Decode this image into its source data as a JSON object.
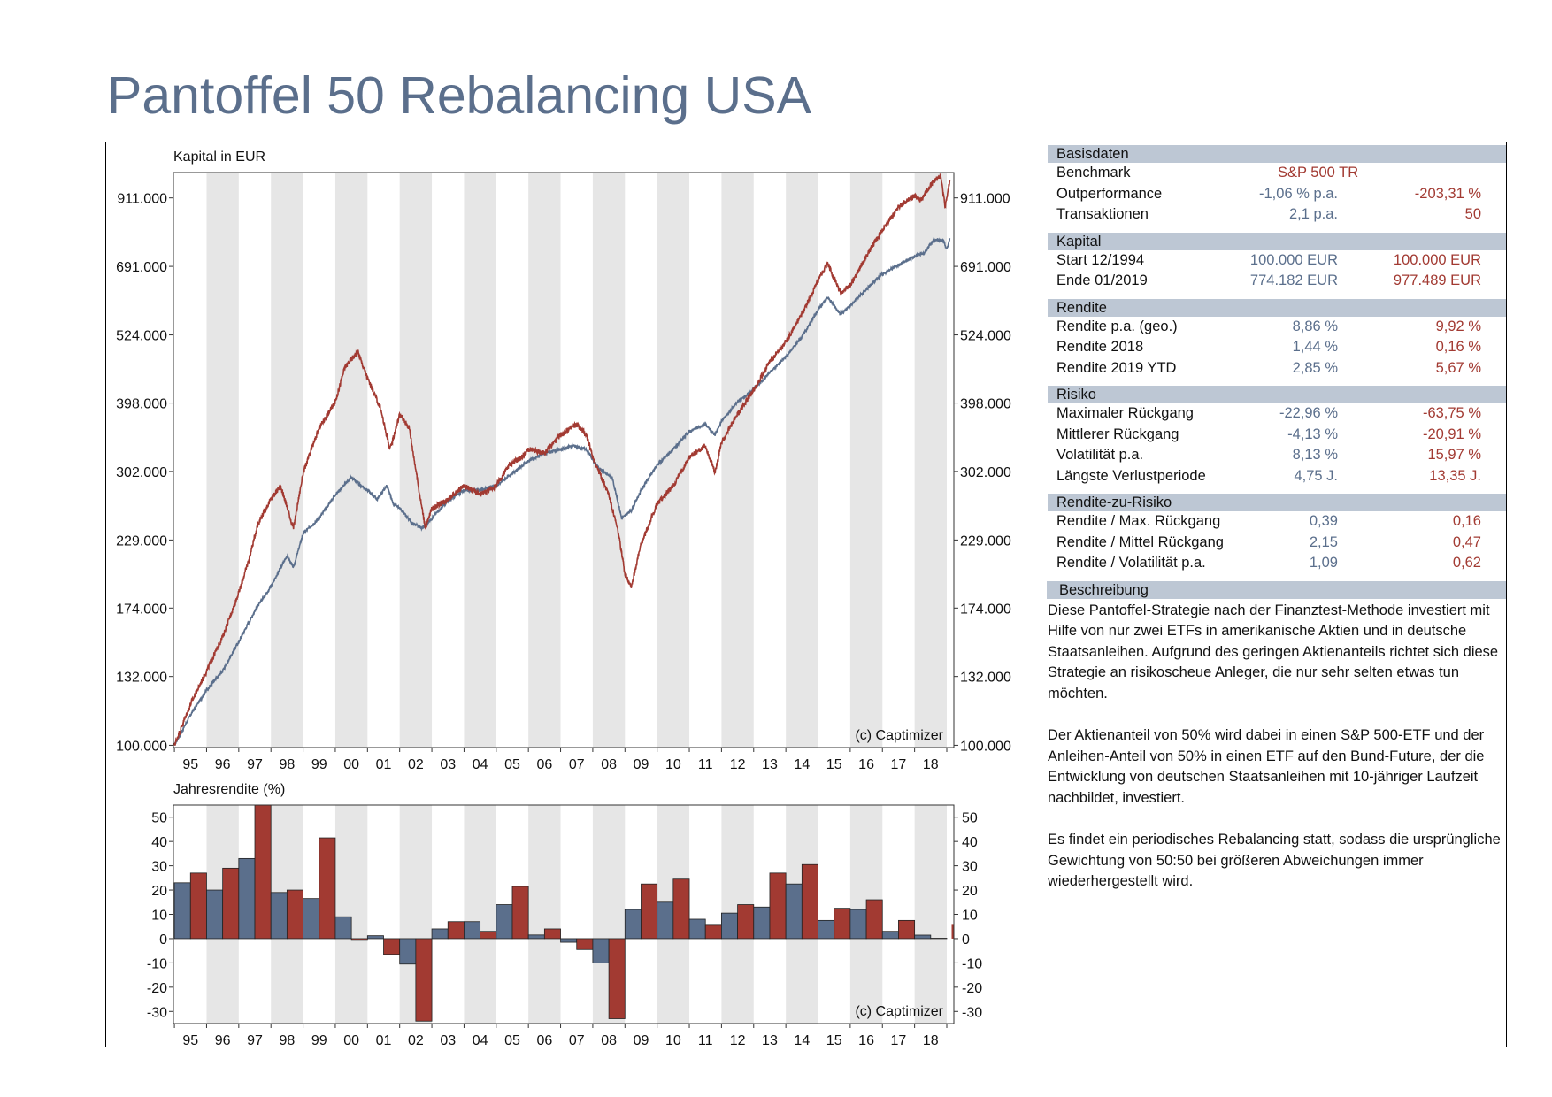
{
  "title": "Pantoffel 50 Rebalancing USA",
  "colors": {
    "strategy": "#5b6f8c",
    "benchmark": "#a23a32",
    "header": "#bdc7d4",
    "band": "#e6e6e6",
    "title": "#5b6f8c"
  },
  "panel": {
    "basisdaten": {
      "header": "Basisdaten",
      "rows": [
        {
          "label": "Benchmark",
          "bench": "S&P 500 TR"
        },
        {
          "label": "Outperformance",
          "v1": "-1,06 % p.a.",
          "v2": "-203,31 %"
        },
        {
          "label": "Transaktionen",
          "v1": "2,1 p.a.",
          "v2": "50"
        }
      ]
    },
    "kapital": {
      "header": "Kapital",
      "rows": [
        {
          "label": "Start  12/1994",
          "v1": "100.000 EUR",
          "v2": "100.000 EUR"
        },
        {
          "label": "Ende 01/2019",
          "v1": "774.182 EUR",
          "v2": "977.489 EUR"
        }
      ]
    },
    "rendite": {
      "header": "Rendite",
      "rows": [
        {
          "label": "Rendite p.a. (geo.)",
          "v1": "8,86 %",
          "v2": "9,92 %"
        },
        {
          "label": "Rendite 2018",
          "v1": "1,44 %",
          "v2": "0,16 %"
        },
        {
          "label": "Rendite 2019 YTD",
          "v1": "2,85 %",
          "v2": "5,67 %"
        }
      ]
    },
    "risiko": {
      "header": "Risiko",
      "rows": [
        {
          "label": "Maximaler Rückgang",
          "v1": "-22,96 %",
          "v2": "-63,75 %"
        },
        {
          "label": "Mittlerer Rückgang",
          "v1": "-4,13 %",
          "v2": "-20,91 %"
        },
        {
          "label": "Volatilität p.a.",
          "v1": "8,13 %",
          "v2": "15,97 %"
        },
        {
          "label": "Längste Verlustperiode",
          "v1": "4,75 J.",
          "v2": "13,35 J."
        }
      ]
    },
    "rzr": {
      "header": "Rendite-zu-Risiko",
      "rows": [
        {
          "label": "Rendite / Max. Rückgang",
          "v1": "0,39",
          "v2": "0,16"
        },
        {
          "label": "Rendite / Mittel Rückgang",
          "v1": "2,15",
          "v2": "0,47"
        },
        {
          "label": "Rendite / Volatilität p.a.",
          "v1": "1,09",
          "v2": "0,62"
        }
      ]
    },
    "beschreibung": {
      "header": "Beschreibung",
      "p1": "Diese Pantoffel-Strategie nach der Finanztest-Methode investiert mit Hilfe von nur zwei ETFs in amerikanische Aktien und in deutsche Staatsanleihen. Aufgrund des geringen Aktienanteils richtet sich diese Strategie an risikoscheue Anleger, die nur sehr selten etwas tun möchten.",
      "p2": "Der Aktienanteil von 50% wird dabei in einen S&P 500-ETF und der Anleihen-Anteil von 50% in einen ETF auf den Bund-Future, der die Entwicklung von deutschen Staatsanleihen mit 10-jähriger Laufzeit nachbildet, investiert.",
      "p3": "Es findet ein periodisches Rebalancing statt, sodass die ursprüngliche Gewichtung von 50:50 bei größeren Abweichungen immer wiederhergestellt wird."
    }
  },
  "chart_data": [
    {
      "type": "line",
      "ylabel": "Kapital in EUR",
      "yscale": "log",
      "ylim": [
        100000,
        1000000
      ],
      "yticks": [
        100000,
        132000,
        174000,
        229000,
        302000,
        398000,
        524000,
        691000,
        911000
      ],
      "ytick_labels": [
        "100.000",
        "132.000",
        "174.000",
        "229.000",
        "302.000",
        "398.000",
        "524.000",
        "691.000",
        "911.000"
      ],
      "xlim": [
        1994.9,
        2019.1
      ],
      "xtick_labels": [
        "95",
        "96",
        "97",
        "98",
        "99",
        "00",
        "01",
        "02",
        "03",
        "04",
        "05",
        "06",
        "07",
        "08",
        "09",
        "10",
        "11",
        "12",
        "13",
        "14",
        "15",
        "16",
        "17",
        "18"
      ],
      "annotation": "(c) Captimizer",
      "series": [
        {
          "color": "#5b6f8c",
          "points": [
            [
              1995.0,
              100000
            ],
            [
              1995.5,
              113000
            ],
            [
              1996.0,
              125000
            ],
            [
              1996.5,
              135000
            ],
            [
              1997.0,
              152000
            ],
            [
              1997.5,
              172000
            ],
            [
              1998.0,
              190000
            ],
            [
              1998.5,
              215000
            ],
            [
              1998.7,
              205000
            ],
            [
              1999.0,
              235000
            ],
            [
              1999.5,
              250000
            ],
            [
              2000.0,
              275000
            ],
            [
              2000.5,
              295000
            ],
            [
              2000.8,
              285000
            ],
            [
              2001.0,
              280000
            ],
            [
              2001.3,
              270000
            ],
            [
              2001.6,
              285000
            ],
            [
              2001.8,
              265000
            ],
            [
              2002.0,
              260000
            ],
            [
              2002.4,
              245000
            ],
            [
              2002.7,
              240000
            ],
            [
              2003.0,
              250000
            ],
            [
              2003.4,
              265000
            ],
            [
              2003.8,
              275000
            ],
            [
              2004.0,
              280000
            ],
            [
              2004.5,
              280000
            ],
            [
              2005.0,
              285000
            ],
            [
              2005.5,
              300000
            ],
            [
              2006.0,
              315000
            ],
            [
              2006.5,
              325000
            ],
            [
              2007.0,
              330000
            ],
            [
              2007.4,
              335000
            ],
            [
              2007.8,
              330000
            ],
            [
              2008.2,
              305000
            ],
            [
              2008.6,
              295000
            ],
            [
              2008.9,
              250000
            ],
            [
              2009.2,
              258000
            ],
            [
              2009.5,
              280000
            ],
            [
              2010.0,
              310000
            ],
            [
              2010.5,
              330000
            ],
            [
              2011.0,
              355000
            ],
            [
              2011.5,
              365000
            ],
            [
              2011.8,
              350000
            ],
            [
              2012.0,
              370000
            ],
            [
              2012.5,
              400000
            ],
            [
              2013.0,
              420000
            ],
            [
              2013.5,
              450000
            ],
            [
              2014.0,
              480000
            ],
            [
              2014.5,
              520000
            ],
            [
              2015.0,
              580000
            ],
            [
              2015.3,
              610000
            ],
            [
              2015.7,
              570000
            ],
            [
              2016.0,
              590000
            ],
            [
              2016.5,
              630000
            ],
            [
              2017.0,
              670000
            ],
            [
              2017.5,
              695000
            ],
            [
              2018.0,
              720000
            ],
            [
              2018.3,
              730000
            ],
            [
              2018.6,
              770000
            ],
            [
              2018.9,
              765000
            ],
            [
              2019.0,
              740000
            ],
            [
              2019.1,
              774182
            ]
          ]
        },
        {
          "color": "#a23a32",
          "points": [
            [
              1995.0,
              100000
            ],
            [
              1995.5,
              118000
            ],
            [
              1996.0,
              135000
            ],
            [
              1996.5,
              155000
            ],
            [
              1997.0,
              185000
            ],
            [
              1997.3,
              210000
            ],
            [
              1997.6,
              245000
            ],
            [
              1998.0,
              270000
            ],
            [
              1998.3,
              285000
            ],
            [
              1998.7,
              240000
            ],
            [
              1999.0,
              300000
            ],
            [
              1999.5,
              360000
            ],
            [
              2000.0,
              400000
            ],
            [
              2000.3,
              460000
            ],
            [
              2000.7,
              490000
            ],
            [
              2001.0,
              440000
            ],
            [
              2001.4,
              390000
            ],
            [
              2001.7,
              330000
            ],
            [
              2002.0,
              380000
            ],
            [
              2002.3,
              360000
            ],
            [
              2002.6,
              280000
            ],
            [
              2002.8,
              240000
            ],
            [
              2003.0,
              260000
            ],
            [
              2003.5,
              270000
            ],
            [
              2004.0,
              285000
            ],
            [
              2004.5,
              275000
            ],
            [
              2005.0,
              285000
            ],
            [
              2005.4,
              310000
            ],
            [
              2005.8,
              320000
            ],
            [
              2006.0,
              330000
            ],
            [
              2006.5,
              325000
            ],
            [
              2007.0,
              350000
            ],
            [
              2007.5,
              365000
            ],
            [
              2007.8,
              350000
            ],
            [
              2008.0,
              320000
            ],
            [
              2008.5,
              275000
            ],
            [
              2008.8,
              235000
            ],
            [
              2009.0,
              200000
            ],
            [
              2009.2,
              190000
            ],
            [
              2009.5,
              225000
            ],
            [
              2010.0,
              265000
            ],
            [
              2010.5,
              285000
            ],
            [
              2011.0,
              320000
            ],
            [
              2011.5,
              335000
            ],
            [
              2011.8,
              300000
            ],
            [
              2012.0,
              340000
            ],
            [
              2012.5,
              380000
            ],
            [
              2013.0,
              420000
            ],
            [
              2013.5,
              470000
            ],
            [
              2014.0,
              510000
            ],
            [
              2014.5,
              570000
            ],
            [
              2015.0,
              650000
            ],
            [
              2015.3,
              700000
            ],
            [
              2015.7,
              620000
            ],
            [
              2016.0,
              640000
            ],
            [
              2016.5,
              720000
            ],
            [
              2017.0,
              800000
            ],
            [
              2017.5,
              880000
            ],
            [
              2018.0,
              920000
            ],
            [
              2018.2,
              900000
            ],
            [
              2018.5,
              960000
            ],
            [
              2018.8,
              1000000
            ],
            [
              2018.95,
              880000
            ],
            [
              2019.1,
              977489
            ]
          ]
        }
      ]
    },
    {
      "type": "bar",
      "ylabel": "Jahresrendite (%)",
      "ylim": [
        -35,
        55
      ],
      "yticks": [
        -30,
        -20,
        -10,
        0,
        10,
        20,
        30,
        40,
        50
      ],
      "categories": [
        "95",
        "96",
        "97",
        "98",
        "99",
        "00",
        "01",
        "02",
        "03",
        "04",
        "05",
        "06",
        "07",
        "08",
        "09",
        "10",
        "11",
        "12",
        "13",
        "14",
        "15",
        "16",
        "17",
        "18"
      ],
      "annotation": "(c) Captimizer",
      "series": [
        {
          "color": "#5b6f8c",
          "values": [
            23,
            20,
            33,
            19,
            16.5,
            9,
            1.2,
            -10.5,
            4,
            7,
            14,
            1.5,
            -1.5,
            -10,
            12,
            15,
            8,
            10.5,
            13,
            22.5,
            7.5,
            12,
            3,
            1.44
          ],
          "ytd": 2.85
        },
        {
          "color": "#a23a32",
          "values": [
            27,
            29,
            56,
            20,
            41.5,
            -0.7,
            -6.5,
            -34,
            7,
            3,
            21.5,
            4,
            -4.5,
            -33,
            22.5,
            24.5,
            5.5,
            14,
            27,
            30.5,
            12.5,
            16,
            7.5,
            0.16
          ],
          "ytd": 5.67
        }
      ]
    }
  ]
}
